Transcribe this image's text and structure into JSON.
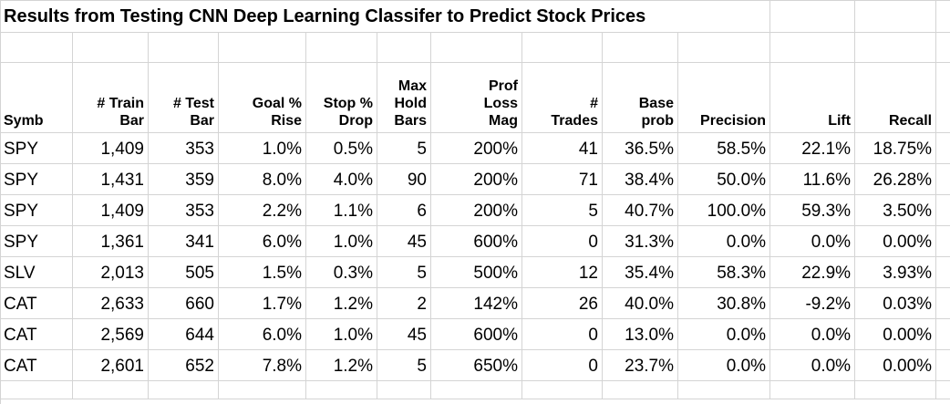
{
  "title": "Results from Testing CNN Deep Learning Classifer to Predict Stock Prices",
  "headers": [
    [
      "Symb"
    ],
    [
      "# Train",
      "Bar"
    ],
    [
      "# Test",
      "Bar"
    ],
    [
      "Goal %",
      "Rise"
    ],
    [
      "Stop %",
      "Drop"
    ],
    [
      "Max",
      "Hold",
      "Bars"
    ],
    [
      "Prof",
      "Loss",
      "Mag"
    ],
    [
      "#",
      "Trades"
    ],
    [
      "Base",
      "prob"
    ],
    [
      "Precision"
    ],
    [
      "Lift"
    ],
    [
      "Recall"
    ]
  ],
  "rows": [
    [
      "SPY",
      "1,409",
      "353",
      "1.0%",
      "0.5%",
      "5",
      "200%",
      "41",
      "36.5%",
      "58.5%",
      "22.1%",
      "18.75%"
    ],
    [
      "SPY",
      "1,431",
      "359",
      "8.0%",
      "4.0%",
      "90",
      "200%",
      "71",
      "38.4%",
      "50.0%",
      "11.6%",
      "26.28%"
    ],
    [
      "SPY",
      "1,409",
      "353",
      "2.2%",
      "1.1%",
      "6",
      "200%",
      "5",
      "40.7%",
      "100.0%",
      "59.3%",
      "3.50%"
    ],
    [
      "SPY",
      "1,361",
      "341",
      "6.0%",
      "1.0%",
      "45",
      "600%",
      "0",
      "31.3%",
      "0.0%",
      "0.0%",
      "0.00%"
    ],
    [
      "SLV",
      "2,013",
      "505",
      "1.5%",
      "0.3%",
      "5",
      "500%",
      "12",
      "35.4%",
      "58.3%",
      "22.9%",
      "3.93%"
    ],
    [
      "CAT",
      "2,633",
      "660",
      "1.7%",
      "1.2%",
      "2",
      "142%",
      "26",
      "40.0%",
      "30.8%",
      "-9.2%",
      "0.03%"
    ],
    [
      "CAT",
      "2,569",
      "644",
      "6.0%",
      "1.0%",
      "45",
      "600%",
      "0",
      "13.0%",
      "0.0%",
      "0.0%",
      "0.00%"
    ],
    [
      "CAT",
      "2,601",
      "652",
      "7.8%",
      "1.2%",
      "5",
      "650%",
      "0",
      "23.7%",
      "0.0%",
      "0.0%",
      "0.00%"
    ]
  ],
  "colors": {
    "gridline": "#d4d4d4",
    "background": "#ffffff",
    "text": "#000000"
  }
}
